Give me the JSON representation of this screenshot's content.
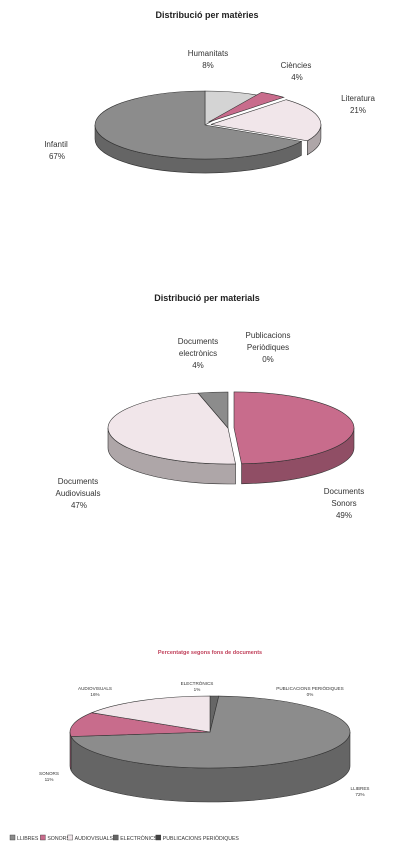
{
  "colors": {
    "dark": "#8c8c8c",
    "light": "#f1e6ea",
    "pink": "#c86c8c",
    "mid": "#d8b4c4",
    "gray": "#b6b6b6",
    "outline": "#333333"
  },
  "chart_data": [
    {
      "type": "pie",
      "title": "Distribució per matèries",
      "slices": [
        {
          "label": "Humanitats",
          "value": 8,
          "value_label": "8%",
          "color": "#d4d4d4"
        },
        {
          "label": "Ciències",
          "value": 4,
          "value_label": "4%",
          "color": "#c86c8c"
        },
        {
          "label": "Literatura",
          "value": 21,
          "value_label": "21%",
          "color": "#f1e6ea"
        },
        {
          "label": "Infantil",
          "value": 67,
          "value_label": "67%",
          "color": "#8c8c8c"
        }
      ]
    },
    {
      "type": "pie",
      "title": "Distribució per materials",
      "slices": [
        {
          "label": "Publicacions Periòdiques",
          "value": 0,
          "value_label": "0%",
          "color": "#666666"
        },
        {
          "label": "Documents Sonors",
          "value": 49,
          "value_label": "49%",
          "color": "#c86c8c"
        },
        {
          "label": "Documents Audiovisuals",
          "value": 47,
          "value_label": "47%",
          "color": "#f1e6ea"
        },
        {
          "label": "Documents electrònics",
          "value": 4,
          "value_label": "4%",
          "color": "#8c8c8c"
        }
      ]
    },
    {
      "type": "pie",
      "title": "Percentatge segons fons de documents",
      "slices": [
        {
          "label": "ELECTRÒNICS",
          "value": 1,
          "value_label": "1%",
          "color": "#666666"
        },
        {
          "label": "PUBLICACIONS PERIÒDIQUES",
          "value": 0,
          "value_label": "0%",
          "color": "#444444"
        },
        {
          "label": "LLIBRES",
          "value": 72,
          "value_label": "72%",
          "color": "#8c8c8c"
        },
        {
          "label": "SONORS",
          "value": 11,
          "value_label": "11%",
          "color": "#c86c8c"
        },
        {
          "label": "AUDIOVISUALS",
          "value": 16,
          "value_label": "16%",
          "color": "#f1e6ea"
        }
      ],
      "legend": {
        "placement": "bottom",
        "items": [
          {
            "label": "LLIBRES",
            "color": "#8c8c8c"
          },
          {
            "label": "SONORS",
            "color": "#c86c8c"
          },
          {
            "label": "AUDIOVISUALS",
            "color": "#f1e6ea"
          },
          {
            "label": "ELECTRÒNICS",
            "color": "#666666"
          },
          {
            "label": "PUBLICACIONS PERIÒDIQUES",
            "color": "#444444"
          }
        ]
      }
    }
  ]
}
